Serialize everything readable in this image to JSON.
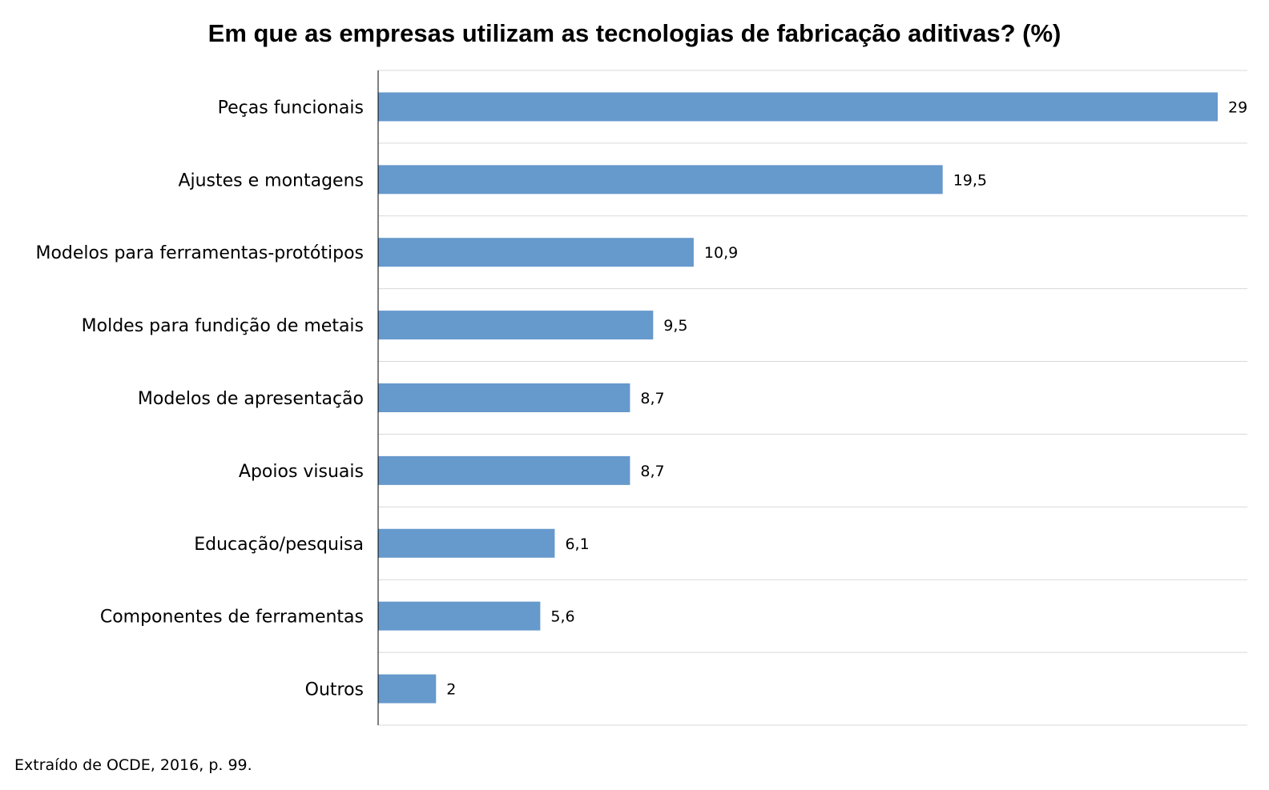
{
  "chart_data": {
    "type": "bar",
    "orientation": "horizontal",
    "title": "Em que as empresas utilizam as tecnologias de fabricação aditivas? (%)",
    "categories": [
      "Peças funcionais",
      "Ajustes e montagens",
      "Modelos para ferramentas-protótipos",
      "Moldes para fundição de metais",
      "Modelos de apresentação",
      "Apoios visuais",
      "Educação/pesquisa",
      "Componentes de ferramentas",
      "Outros"
    ],
    "values": [
      29,
      19.5,
      10.9,
      9.5,
      8.7,
      8.7,
      6.1,
      5.6,
      2
    ],
    "value_labels": [
      "29",
      "19,5",
      "10,9",
      "9,5",
      "8,7",
      "8,7",
      "6,1",
      "5,6",
      "2"
    ],
    "xlim": [
      0,
      30
    ],
    "grid": true,
    "legend": "none",
    "bar_color": "#6699cc"
  },
  "source_note": "Extraído de OCDE, 2016, p. 99."
}
